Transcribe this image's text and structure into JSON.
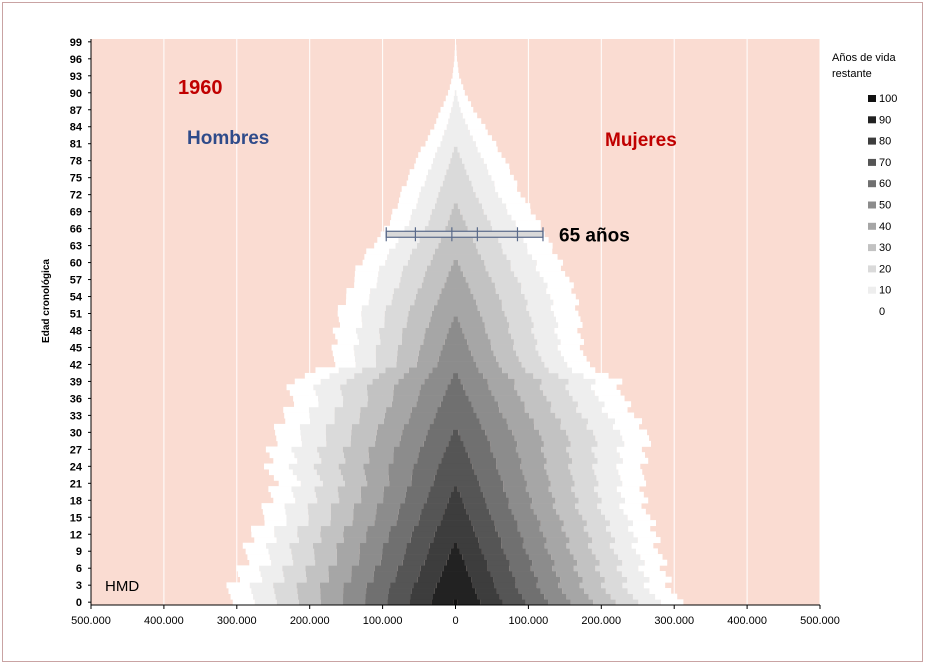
{
  "chart_data": {
    "type": "bar",
    "subtype": "population-pyramid-stacked",
    "year_label": "1960",
    "left_label": "Hombres",
    "right_label": "Mujeres",
    "source_label": "HMD",
    "ylabel": "Edad cronológica",
    "legend_title": "Años de vida restante",
    "legend_items": [
      "100",
      "90",
      "80",
      "70",
      "60",
      "50",
      "40",
      "30",
      "20",
      "10",
      "0"
    ],
    "legend_colors": [
      "#111111",
      "#222222",
      "#3d3d3d",
      "#555555",
      "#707070",
      "#8c8c8c",
      "#a6a6a6",
      "#c2c2c2",
      "#dadada",
      "#eeeeee",
      "#ffffff"
    ],
    "marker_label": "65 años",
    "marker_age": 65.5,
    "x_tick_labels": [
      "500.000",
      "400.000",
      "300.000",
      "200.000",
      "100.000",
      "0",
      "100.000",
      "200.000",
      "300.000",
      "400.000",
      "500.000"
    ],
    "x_tick_values": [
      -500000,
      -400000,
      -300000,
      -200000,
      -100000,
      0,
      100000,
      200000,
      300000,
      400000,
      500000
    ],
    "y_tick_labels": [
      "0",
      "3",
      "6",
      "9",
      "12",
      "15",
      "18",
      "21",
      "24",
      "27",
      "30",
      "33",
      "36",
      "39",
      "42",
      "45",
      "48",
      "51",
      "54",
      "57",
      "60",
      "63",
      "66",
      "69",
      "72",
      "75",
      "78",
      "81",
      "84",
      "87",
      "90",
      "93",
      "96",
      "99"
    ],
    "xlim": [
      -500000,
      500000
    ],
    "ylim": [
      0,
      100
    ],
    "men_total_points": [
      [
        0,
        315000
      ],
      [
        3,
        305000
      ],
      [
        6,
        295000
      ],
      [
        9,
        285000
      ],
      [
        12,
        280000
      ],
      [
        15,
        265000
      ],
      [
        18,
        255000
      ],
      [
        21,
        250000
      ],
      [
        24,
        255000
      ],
      [
        27,
        255000
      ],
      [
        30,
        245000
      ],
      [
        33,
        235000
      ],
      [
        36,
        225000
      ],
      [
        39,
        225000
      ],
      [
        42,
        170000
      ],
      [
        45,
        165000
      ],
      [
        48,
        165000
      ],
      [
        51,
        160000
      ],
      [
        54,
        150000
      ],
      [
        57,
        140000
      ],
      [
        60,
        130000
      ],
      [
        63,
        115000
      ],
      [
        66,
        95000
      ],
      [
        69,
        85000
      ],
      [
        72,
        75000
      ],
      [
        75,
        65000
      ],
      [
        78,
        55000
      ],
      [
        81,
        42000
      ],
      [
        84,
        30000
      ],
      [
        87,
        20000
      ],
      [
        90,
        10000
      ],
      [
        93,
        4000
      ],
      [
        96,
        1500
      ],
      [
        99,
        500
      ]
    ],
    "women_total_points": [
      [
        0,
        305000
      ],
      [
        3,
        295000
      ],
      [
        6,
        285000
      ],
      [
        9,
        280000
      ],
      [
        12,
        275000
      ],
      [
        15,
        265000
      ],
      [
        18,
        260000
      ],
      [
        21,
        255000
      ],
      [
        24,
        260000
      ],
      [
        27,
        260000
      ],
      [
        30,
        265000
      ],
      [
        33,
        245000
      ],
      [
        36,
        230000
      ],
      [
        39,
        225000
      ],
      [
        42,
        180000
      ],
      [
        45,
        175000
      ],
      [
        48,
        170000
      ],
      [
        51,
        170000
      ],
      [
        54,
        165000
      ],
      [
        57,
        155000
      ],
      [
        60,
        145000
      ],
      [
        63,
        130000
      ],
      [
        66,
        120000
      ],
      [
        69,
        105000
      ],
      [
        72,
        90000
      ],
      [
        75,
        80000
      ],
      [
        78,
        68000
      ],
      [
        81,
        55000
      ],
      [
        84,
        40000
      ],
      [
        87,
        25000
      ],
      [
        90,
        13000
      ],
      [
        93,
        5000
      ],
      [
        96,
        2000
      ],
      [
        99,
        700
      ]
    ],
    "colors": {
      "plot_background": "#fadcd2",
      "year": "#c00000",
      "men_label": "#2f4b8a",
      "women_label": "#c00000"
    }
  }
}
